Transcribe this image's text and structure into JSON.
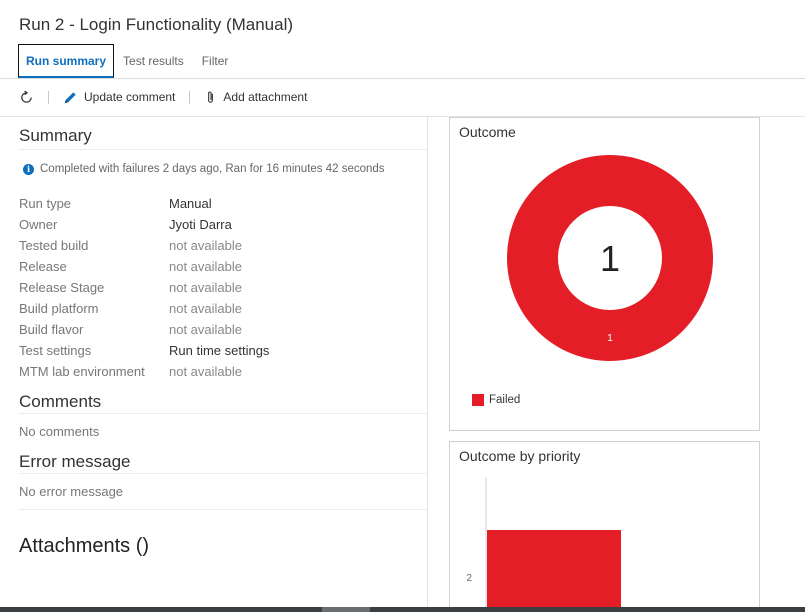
{
  "header": {
    "title": "Run 2 - Login Functionality (Manual)"
  },
  "tabs": [
    {
      "label": "Run summary"
    },
    {
      "label": "Test results"
    },
    {
      "label": "Filter"
    }
  ],
  "toolbar": {
    "update_comment": "Update comment",
    "add_attachment": "Add attachment"
  },
  "summary": {
    "heading": "Summary",
    "status": "Completed with failures 2 days ago, Ran for 16 minutes 42 seconds",
    "properties": [
      {
        "label": "Run type",
        "value": "Manual"
      },
      {
        "label": "Owner",
        "value": "Jyoti Darra"
      },
      {
        "label": "Tested build",
        "value": "not available"
      },
      {
        "label": "Release",
        "value": "not available"
      },
      {
        "label": "Release Stage",
        "value": "not available"
      },
      {
        "label": "Build platform",
        "value": "not available"
      },
      {
        "label": "Build flavor",
        "value": "not available"
      },
      {
        "label": "Test settings",
        "value": "Run time settings"
      },
      {
        "label": "MTM lab environment",
        "value": "not available"
      }
    ]
  },
  "comments": {
    "heading": "Comments",
    "empty": "No comments"
  },
  "error_message": {
    "heading": "Error message",
    "empty": "No error message"
  },
  "attachments": {
    "heading": "Attachments ()"
  },
  "outcome": {
    "title": "Outcome",
    "center_value": "1",
    "legend": "Failed",
    "color": "#e31e26"
  },
  "outcome_by_priority": {
    "title": "Outcome by priority"
  },
  "chart_data": [
    {
      "type": "pie",
      "title": "Outcome",
      "labels": [
        "Failed"
      ],
      "values": [
        1
      ],
      "slice_labels": [
        "1"
      ],
      "center_label": "1",
      "colors": [
        "#e31e26"
      ],
      "legend": "bottom-left"
    },
    {
      "type": "bar",
      "title": "Outcome by priority",
      "categories": [
        "2"
      ],
      "series": [
        {
          "name": "Failed",
          "values": [
            1
          ],
          "color": "#e31e26"
        }
      ],
      "orientation": "horizontal"
    }
  ]
}
